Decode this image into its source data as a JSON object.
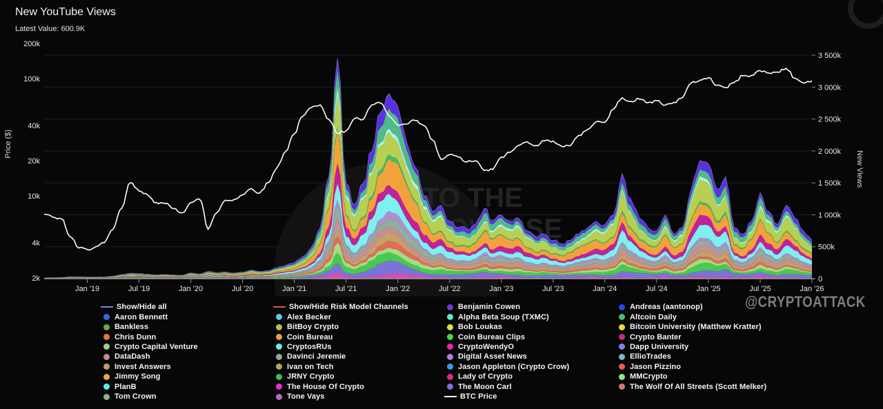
{
  "header": {
    "title": "New YouTube Views",
    "latest": "Latest Value: 600.9K"
  },
  "watermarks": {
    "handle": "@CRYPTOATTACK",
    "brand_line1": "INTO THE",
    "brand_line2": "CRYPTOVERSE"
  },
  "axes": {
    "left_label": "Price ($)",
    "right_label": "New Views",
    "left_ticks": [
      {
        "v": 200,
        "label": "200k"
      },
      {
        "v": 100,
        "label": "100k"
      },
      {
        "v": 40,
        "label": "40k"
      },
      {
        "v": 20,
        "label": "20k"
      },
      {
        "v": 10,
        "label": "10k"
      },
      {
        "v": 4,
        "label": "4k"
      },
      {
        "v": 2,
        "label": "2k"
      }
    ],
    "right_ticks": [
      {
        "v": 0,
        "label": "0"
      },
      {
        "v": 500,
        "label": "500k"
      },
      {
        "v": 1000,
        "label": "1 000k"
      },
      {
        "v": 1500,
        "label": "1 500k"
      },
      {
        "v": 2000,
        "label": "2 000k"
      },
      {
        "v": 2500,
        "label": "2 500k"
      },
      {
        "v": 3000,
        "label": "3 000k"
      },
      {
        "v": 3500,
        "label": "3 500k"
      }
    ],
    "bottom_ticks": [
      "Jan '19",
      "Jul '19",
      "Jan '20",
      "Jul '20",
      "Jan '21",
      "Jul '21",
      "Jan '22",
      "Jul '22",
      "Jan '23",
      "Jul '23",
      "Jan '24",
      "Jul '24",
      "Jan '25",
      "Jul '25",
      "Jan '26"
    ]
  },
  "legend": {
    "columns": [
      [
        {
          "label": "Show/Hide all",
          "color": "#7286e8",
          "icon": "line"
        },
        {
          "label": "Aaron Bennett",
          "color": "#3a6bd6",
          "icon": "dot"
        },
        {
          "label": "Bankless",
          "color": "#6aa84f",
          "icon": "dot"
        },
        {
          "label": "Chris Dunn",
          "color": "#e8733a",
          "icon": "dot"
        },
        {
          "label": "Crypto Capital Venture",
          "color": "#a0ce8a",
          "icon": "dot"
        },
        {
          "label": "DataDash",
          "color": "#c48b90",
          "icon": "dot"
        },
        {
          "label": "Invest Answers",
          "color": "#c2996a",
          "icon": "dot"
        },
        {
          "label": "Jimmy Song",
          "color": "#eda63c",
          "icon": "dot"
        },
        {
          "label": "PlanB",
          "color": "#55eef0",
          "icon": "dot"
        },
        {
          "label": "Tom Crown",
          "color": "#88b48e",
          "icon": "dot"
        }
      ],
      [
        {
          "label": "Show/Hide Risk Model Channels",
          "color": "#e2574a",
          "icon": "line"
        },
        {
          "label": "Alex Becker",
          "color": "#63cbe0",
          "icon": "dot"
        },
        {
          "label": "BitBoy Crypto",
          "color": "#b9bf55",
          "icon": "dot"
        },
        {
          "label": "Coin Bureau",
          "color": "#f0a03c",
          "icon": "dot"
        },
        {
          "label": "CryptosRUs",
          "color": "#6ceded",
          "icon": "dot"
        },
        {
          "label": "Davinci Jeremie",
          "color": "#8fae96",
          "icon": "dot"
        },
        {
          "label": "Ivan on Tech",
          "color": "#b0aa58",
          "icon": "dot"
        },
        {
          "label": "JRNY Crypto",
          "color": "#3fbf4a",
          "icon": "dot"
        },
        {
          "label": "The House Of Crypto",
          "color": "#ee2ecc",
          "icon": "dot"
        },
        {
          "label": "Tone Vays",
          "color": "#b36cc8",
          "icon": "dot"
        }
      ],
      [
        {
          "label": "Benjamin Cowen",
          "color": "#6a3ad6",
          "icon": "dot"
        },
        {
          "label": "Alpha Beta Soup (TXMC)",
          "color": "#63e8c0",
          "icon": "dot"
        },
        {
          "label": "Bob Loukas",
          "color": "#dede4a",
          "icon": "dot"
        },
        {
          "label": "Coin Bureau Clips",
          "color": "#3ddd3d",
          "icon": "dot"
        },
        {
          "label": "CryptoWendyO",
          "color": "#ee2aaa",
          "icon": "dot"
        },
        {
          "label": "Digital Asset News",
          "color": "#bb7ad0",
          "icon": "dot"
        },
        {
          "label": "Jason Appleton (Crypto Crow)",
          "color": "#3f96ea",
          "icon": "dot"
        },
        {
          "label": "Lady of Crypto",
          "color": "#dd2a88",
          "icon": "dot"
        },
        {
          "label": "The Moon Carl",
          "color": "#7b74dd",
          "icon": "dot"
        },
        {
          "label": "BTC Price",
          "color": "#ffffff",
          "icon": "line"
        }
      ],
      [
        {
          "label": "Andreas (aantonop)",
          "color": "#2a46e8",
          "icon": "dot"
        },
        {
          "label": "Altcoin Daily",
          "color": "#4cba7e",
          "icon": "dot"
        },
        {
          "label": "Bitcoin University (Matthew Kratter)",
          "color": "#e8d83a",
          "icon": "dot"
        },
        {
          "label": "Crypto Banter",
          "color": "#cc2a80",
          "icon": "dot"
        },
        {
          "label": "Dapp University",
          "color": "#8a7ede",
          "icon": "dot"
        },
        {
          "label": "EllioTrades",
          "color": "#7cb8cc",
          "icon": "dot"
        },
        {
          "label": "Jason Pizzino",
          "color": "#ea5a52",
          "icon": "dot"
        },
        {
          "label": "MMCrypto",
          "color": "#8ce87a",
          "icon": "dot"
        },
        {
          "label": "The Wolf Of All Streets (Scott Melker)",
          "color": "#c87e7e",
          "icon": "dot"
        }
      ]
    ]
  },
  "chart_data": {
    "type": "area",
    "stacked": true,
    "title": "New YouTube Views",
    "latest_value_views": "600.9K",
    "x_start_month": "2018-08",
    "x_end_month": "2026-01",
    "xlabel": "",
    "right_axis": {
      "label": "New Views",
      "scale": "linear",
      "ticks_k": [
        0,
        500,
        1000,
        1500,
        2000,
        2500,
        3000,
        3500
      ],
      "ylim_k": [
        0,
        3500
      ]
    },
    "left_axis": {
      "label": "Price ($)",
      "scale": "log",
      "ticks_k": [
        2,
        4,
        10,
        20,
        40,
        100,
        200
      ],
      "ylim_k": [
        2,
        200
      ]
    },
    "grid": "horizontal",
    "legend_position": "bottom",
    "total_new_views_k": [
      12,
      15,
      18,
      30,
      28,
      25,
      24,
      28,
      40,
      65,
      85,
      80,
      70,
      60,
      65,
      58,
      52,
      90,
      75,
      115,
      95,
      105,
      88,
      100,
      135,
      115,
      125,
      170,
      210,
      250,
      350,
      500,
      800,
      1600,
      3450,
      1500,
      1150,
      1500,
      2000,
      2600,
      2900,
      2700,
      2150,
      1750,
      1300,
      1050,
      1150,
      900,
      800,
      780,
      850,
      1100,
      900,
      1000,
      900,
      950,
      750,
      650,
      700,
      600,
      550,
      600,
      700,
      800,
      900,
      850,
      1000,
      1650,
      1250,
      950,
      800,
      750,
      1000,
      700,
      800,
      1400,
      1850,
      1800,
      1400,
      1600,
      800,
      700,
      900,
      1350,
      1050,
      850,
      1150,
      950,
      750,
      601
    ],
    "btc_price_usd_k": [
      7.0,
      6.6,
      6.4,
      4.5,
      3.6,
      3.5,
      3.7,
      4.0,
      5.2,
      7.9,
      13.0,
      11.0,
      10.2,
      8.8,
      8.6,
      7.8,
      7.2,
      8.8,
      9.4,
      5.2,
      7.2,
      9.2,
      9.3,
      10.2,
      11.6,
      10.6,
      13.0,
      17.5,
      24.0,
      34.0,
      48.0,
      57.0,
      60.0,
      45.0,
      34.0,
      36.0,
      46.0,
      45.0,
      60.0,
      62.0,
      48.0,
      40.0,
      41.0,
      44.0,
      40.0,
      30.0,
      20.5,
      22.5,
      21.5,
      19.5,
      20.0,
      16.5,
      16.8,
      21.5,
      23.5,
      27.0,
      29.0,
      27.0,
      29.5,
      29.5,
      26.5,
      26.8,
      33.0,
      37.0,
      43.0,
      42.5,
      55.0,
      69.0,
      64.0,
      67.0,
      62.5,
      65.0,
      59.5,
      63.0,
      69.0,
      92.0,
      97.0,
      102.0,
      88.0,
      84.0,
      93.0,
      106.0,
      107.0,
      117.0,
      112.0,
      114.0,
      123.0,
      101.0,
      92.0,
      96.0
    ],
    "btc_line_color": "#ffffff",
    "bands_bottom_to_top": [
      {
        "name": "Lady of Crypto",
        "color": "#d24fb4",
        "share": 2.5
      },
      {
        "name": "The Moon Carl",
        "color": "#7b74d8",
        "share": 5.5
      },
      {
        "name": "Coin Bureau Clips",
        "color": "#49c94d",
        "share": 5
      },
      {
        "name": "MMCrypto",
        "color": "#a4dc86",
        "share": 3.5
      },
      {
        "name": "Jason Pizzino",
        "color": "#e66a58",
        "share": 3
      },
      {
        "name": "Invest Answers",
        "color": "#c3a26b",
        "share": 4
      },
      {
        "name": "The Wolf Of All Streets (Scott Melker)",
        "color": "#c98f96",
        "share": 4
      },
      {
        "name": "Davinci Jeremie",
        "color": "#93ad9e",
        "share": 5
      },
      {
        "name": "Tone Vays",
        "color": "#b08fd0",
        "share": 3
      },
      {
        "name": "CryptosRUs",
        "color": "#7df0f0",
        "share": 9
      },
      {
        "name": "CryptoWendyO",
        "color": "#c2219c",
        "share": 7
      },
      {
        "name": "Coin Bureau",
        "color": "#f2a23d",
        "share": 13
      },
      {
        "name": "JRNY Crypto",
        "color": "#3bbf6a",
        "share": 2
      },
      {
        "name": "BitBoy Crypto",
        "color": "#b9cf52",
        "share": 14
      },
      {
        "name": "PlanB",
        "color": "#aef3e4",
        "share": 3
      },
      {
        "name": "Altcoin Daily",
        "color": "#52b98a",
        "share": 8.5
      },
      {
        "name": "Benjamin Cowen",
        "color": "#5a31e0",
        "share": 7
      }
    ]
  }
}
